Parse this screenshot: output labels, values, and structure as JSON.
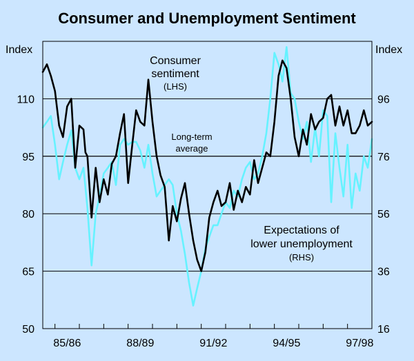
{
  "chart_data": {
    "type": "line",
    "title": "Consumer and Unemployment Sentiment",
    "left_axis": {
      "label": "Index",
      "ticks": [
        50,
        65,
        80,
        95,
        110
      ],
      "range": [
        50,
        125
      ]
    },
    "right_axis": {
      "label": "Index",
      "ticks": [
        16,
        36,
        56,
        76,
        96
      ],
      "range": [
        16,
        116
      ]
    },
    "x_axis": {
      "ticks": [
        "85/86",
        "88/89",
        "91/92",
        "94/95",
        "97/98"
      ],
      "range": [
        1984.5,
        1998.0
      ]
    },
    "reference_line": {
      "value": 95,
      "axis": "left",
      "label_line1": "Long-term",
      "label_line2": "average"
    },
    "annotations": {
      "consumer_line1": "Consumer",
      "consumer_line2": "sentiment",
      "consumer_note": "(LHS)",
      "unemp_line1": "Expectations of",
      "unemp_line2": "lower unemployment",
      "unemp_note": "(RHS)"
    },
    "series": [
      {
        "name": "Consumer sentiment",
        "axis": "left",
        "color": "#000000",
        "x": [
          1984.5,
          1984.67,
          1984.83,
          1985.0,
          1985.17,
          1985.33,
          1985.5,
          1985.67,
          1985.83,
          1986.0,
          1986.17,
          1986.25,
          1986.33,
          1986.5,
          1986.67,
          1986.83,
          1987.0,
          1987.17,
          1987.33,
          1987.5,
          1987.67,
          1987.83,
          1988.0,
          1988.17,
          1988.33,
          1988.5,
          1988.67,
          1988.83,
          1989.0,
          1989.17,
          1989.33,
          1989.5,
          1989.67,
          1989.83,
          1990.0,
          1990.17,
          1990.33,
          1990.5,
          1990.67,
          1990.83,
          1991.0,
          1991.17,
          1991.33,
          1991.5,
          1991.67,
          1991.83,
          1992.0,
          1992.17,
          1992.33,
          1992.5,
          1992.67,
          1992.83,
          1993.0,
          1993.17,
          1993.33,
          1993.5,
          1993.67,
          1993.83,
          1994.0,
          1994.17,
          1994.33,
          1994.5,
          1994.67,
          1994.83,
          1995.0,
          1995.17,
          1995.33,
          1995.5,
          1995.67,
          1995.83,
          1996.0,
          1996.17,
          1996.33,
          1996.5,
          1996.67,
          1996.83,
          1997.0,
          1997.17,
          1997.33,
          1997.5,
          1997.67,
          1997.83,
          1998.0
        ],
        "values": [
          117,
          119,
          116,
          112,
          103,
          100,
          108,
          110,
          92,
          103,
          102,
          96,
          95,
          79,
          92,
          83,
          89,
          85,
          93,
          95,
          101,
          106,
          88,
          98,
          107,
          104,
          103,
          115,
          104,
          95,
          90,
          87,
          73,
          82,
          78,
          84,
          88,
          80,
          73,
          68,
          65,
          70,
          79,
          83,
          86,
          82,
          83,
          88,
          81,
          86,
          83,
          87,
          85,
          94,
          88,
          92,
          96,
          95,
          104,
          116,
          120,
          118,
          110,
          100,
          95,
          102,
          98,
          106,
          102,
          104,
          105,
          110,
          111,
          103,
          108,
          103,
          107,
          101,
          101,
          103,
          107,
          103,
          104
        ]
      },
      {
        "name": "Expectations of lower unemployment",
        "axis": "right",
        "color": "#66f2ff",
        "x": [
          1984.5,
          1984.67,
          1984.83,
          1985.0,
          1985.17,
          1985.33,
          1985.5,
          1985.67,
          1985.83,
          1986.0,
          1986.17,
          1986.33,
          1986.5,
          1986.67,
          1986.83,
          1987.0,
          1987.17,
          1987.33,
          1987.5,
          1987.67,
          1987.83,
          1988.0,
          1988.17,
          1988.33,
          1988.5,
          1988.67,
          1988.83,
          1989.0,
          1989.17,
          1989.33,
          1989.5,
          1989.67,
          1989.83,
          1990.0,
          1990.17,
          1990.33,
          1990.5,
          1990.67,
          1990.83,
          1991.0,
          1991.17,
          1991.33,
          1991.5,
          1991.67,
          1991.83,
          1992.0,
          1992.17,
          1992.33,
          1992.5,
          1992.67,
          1992.83,
          1993.0,
          1993.17,
          1993.33,
          1993.5,
          1993.67,
          1993.83,
          1994.0,
          1994.17,
          1994.33,
          1994.5,
          1994.67,
          1994.83,
          1995.0,
          1995.17,
          1995.33,
          1995.5,
          1995.67,
          1995.83,
          1996.0,
          1996.17,
          1996.33,
          1996.5,
          1996.67,
          1996.83,
          1997.0,
          1997.17,
          1997.33,
          1997.5,
          1997.67,
          1997.83,
          1998.0
        ],
        "values": [
          86,
          88,
          90,
          80,
          68,
          74,
          80,
          85,
          72,
          68,
          72,
          58,
          38,
          56,
          62,
          70,
          72,
          74,
          66,
          80,
          82,
          80,
          81,
          81,
          78,
          72,
          80,
          70,
          62,
          64,
          66,
          68,
          66,
          56,
          50,
          42,
          32,
          24,
          30,
          36,
          44,
          48,
          52,
          52,
          56,
          60,
          58,
          64,
          62,
          68,
          72,
          74,
          68,
          70,
          76,
          84,
          96,
          112,
          108,
          102,
          114,
          98,
          96,
          88,
          82,
          88,
          74,
          86,
          76,
          92,
          90,
          60,
          84,
          72,
          62,
          80,
          58,
          70,
          64,
          76,
          72,
          82
        ]
      }
    ]
  }
}
